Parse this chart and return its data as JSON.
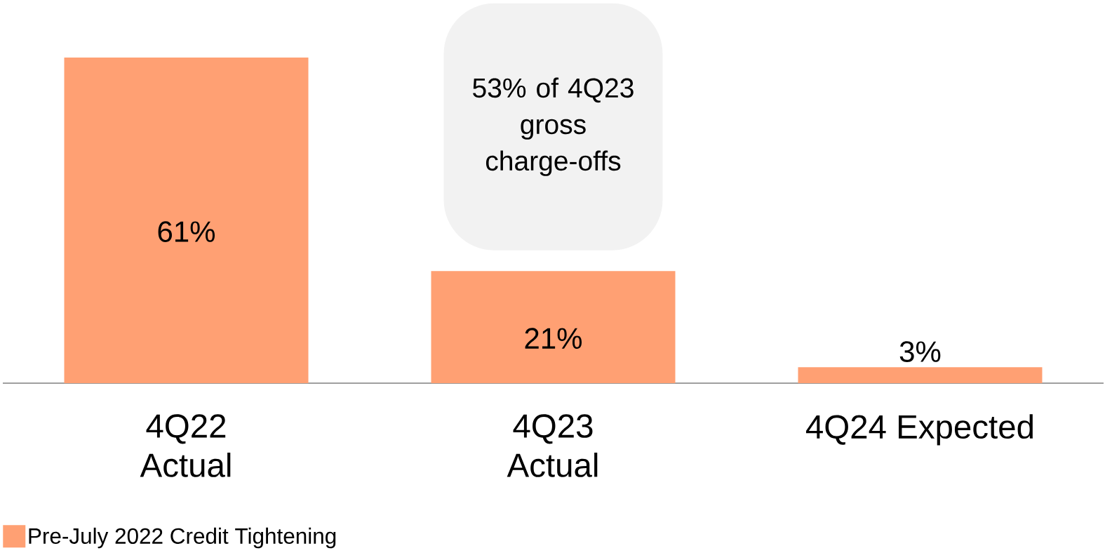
{
  "chart_data": {
    "type": "bar",
    "categories": [
      "4Q22 Actual",
      "4Q23 Actual",
      "4Q24 Expected"
    ],
    "series": [
      {
        "name": "Pre-July 2022 Credit Tightening",
        "color": "#ffa073",
        "values": [
          61,
          21,
          3
        ],
        "value_labels": [
          "61%",
          "21%",
          "3%"
        ]
      }
    ],
    "annotations": [
      "53% of 4Q23 gross charge-offs"
    ],
    "legend": "bottom left"
  }
}
